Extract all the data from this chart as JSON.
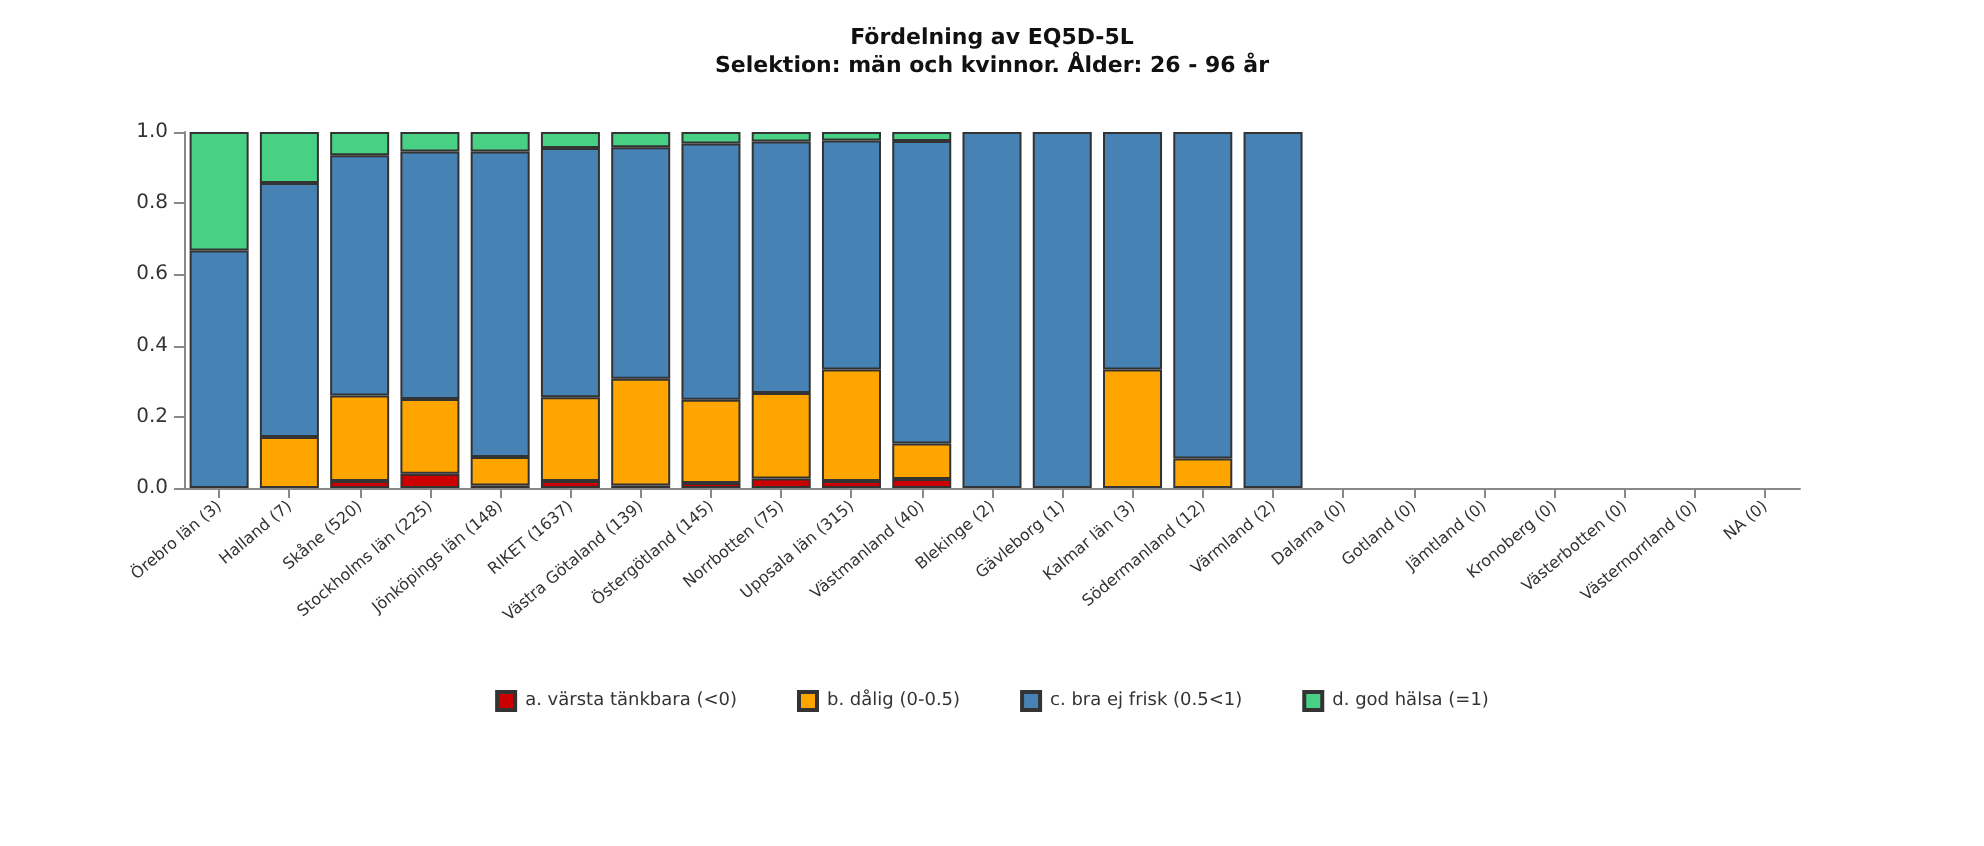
{
  "chart_data": {
    "type": "bar",
    "title": "Fördelning av EQ5D-5L",
    "subtitle": "Selektion: män och kvinnor. Ålder: 26 - 96 år",
    "stacked": true,
    "legend": "bottom",
    "grid": false,
    "categories": [
      "Örebro län (3)",
      "Halland (7)",
      "Skåne (520)",
      "Stockholms län (225)",
      "Jönköpings län (148)",
      "RIKET (1637)",
      "Västra Götaland (139)",
      "Östergötland (145)",
      "Norrbotten (75)",
      "Uppsala län (315)",
      "Västmanland (40)",
      "Blekinge (2)",
      "Gävleborg (1)",
      "Kalmar län (3)",
      "Södermanland (12)",
      "Värmland (2)",
      "Dalarna (0)",
      "Gotland (0)",
      "Jämtland (0)",
      "Kronoberg (0)",
      "Västerbotten (0)",
      "Västernorrland (0)",
      "NA (0)"
    ],
    "ylim": [
      0,
      1
    ],
    "yticks": [
      {
        "value": 0,
        "label": "0.0"
      },
      {
        "value": 0.2,
        "label": "0.2"
      },
      {
        "value": 0.4,
        "label": "0.4"
      },
      {
        "value": 0.6,
        "label": "0.6"
      },
      {
        "value": 0.8,
        "label": "0.8"
      },
      {
        "value": 1,
        "label": "1.0"
      }
    ],
    "series": [
      {
        "name": "a. värsta tänkbara (<0)",
        "color": "#cc0000",
        "values": [
          0,
          0,
          0.02,
          0.04,
          0.007,
          0.02,
          0.007,
          0.014,
          0.027,
          0.02,
          0.025,
          0,
          0,
          0,
          0,
          0,
          null,
          null,
          null,
          null,
          null,
          null,
          null
        ]
      },
      {
        "name": "b. dålig (0-0.5)",
        "color": "#ffa500",
        "values": [
          0,
          0.143,
          0.24,
          0.21,
          0.08,
          0.235,
          0.3,
          0.234,
          0.24,
          0.313,
          0.1,
          0,
          0,
          0.333,
          0.083,
          0,
          null,
          null,
          null,
          null,
          null,
          null,
          null
        ]
      },
      {
        "name": "c. bra ej frisk (0.5<1)",
        "color": "#4682b4",
        "values": [
          0.667,
          0.714,
          0.675,
          0.695,
          0.858,
          0.7,
          0.65,
          0.72,
          0.706,
          0.643,
          0.85,
          1,
          1,
          0.667,
          0.917,
          1,
          null,
          null,
          null,
          null,
          null,
          null,
          null
        ]
      },
      {
        "name": "d. god hälsa (=1)",
        "color": "#48d084",
        "values": [
          0.333,
          0.143,
          0.065,
          0.055,
          0.055,
          0.045,
          0.043,
          0.032,
          0.027,
          0.024,
          0.025,
          0,
          0,
          0,
          0,
          0,
          null,
          null,
          null,
          null,
          null,
          null,
          null
        ]
      }
    ]
  }
}
